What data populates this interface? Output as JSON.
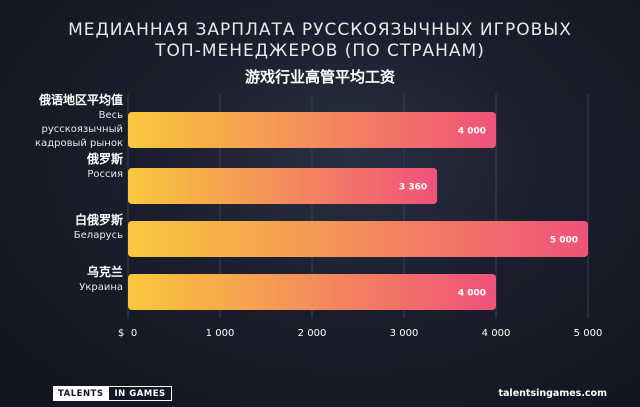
{
  "header": {
    "title_line1": "МЕДИАННАЯ ЗАРПЛАТА РУССКОЯЗЫЧНЫХ ИГРОВЫХ",
    "title_line2": "ТОП-МЕНЕДЖЕРОВ (ПО СТРАНАМ)",
    "subtitle": "游戏行业高管平均工资"
  },
  "chart_data": {
    "type": "bar",
    "orientation": "horizontal",
    "categories": [
      {
        "cn": "俄语地区平均值",
        "ru": [
          "Весь",
          "русскоязычный",
          "кадровый рынок"
        ]
      },
      {
        "cn": "俄罗斯",
        "ru": [
          "Россия"
        ]
      },
      {
        "cn": "白俄罗斯",
        "ru": [
          "Беларусь"
        ]
      },
      {
        "cn": "乌克兰",
        "ru": [
          "Украина"
        ]
      }
    ],
    "values": [
      4000,
      3360,
      5000,
      4000
    ],
    "value_labels": [
      "4 000",
      "3 360",
      "5 000",
      "4 000"
    ],
    "xlim": [
      0,
      5000
    ],
    "ticks": [
      0,
      1000,
      2000,
      3000,
      4000,
      5000
    ],
    "tick_labels": [
      "0",
      "1 000",
      "2 000",
      "3 000",
      "4 000",
      "5 000"
    ],
    "currency_symbol": "$",
    "grid": true,
    "bar_gradient": [
      "#f9c83c",
      "#f0527a"
    ]
  },
  "footer": {
    "logo_part1": "TALENTS",
    "logo_part2": "IN GAMES",
    "website": "talentsingames.com"
  }
}
